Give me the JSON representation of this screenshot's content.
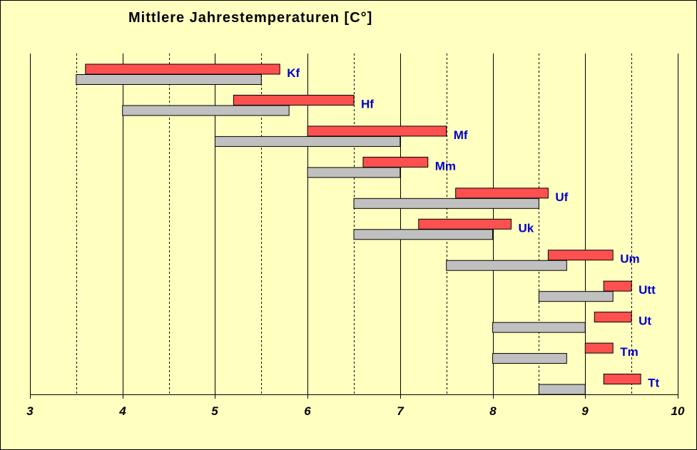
{
  "chart_data": {
    "type": "bar",
    "orientation": "horizontal-range",
    "title": "Mittlere  Jahrestemperaturen  [C°]",
    "xlabel": "",
    "ylabel": "",
    "xlim": [
      3,
      10
    ],
    "x_ticks": [
      3,
      4,
      5,
      6,
      7,
      8,
      9,
      10
    ],
    "grid": "vertical, solid at integers, dashed at halves",
    "legend": "none",
    "categories": [
      "Kf",
      "Hf",
      "Mf",
      "Mm",
      "Uf",
      "Uk",
      "Um",
      "Utt",
      "Ut",
      "Tm",
      "Tt"
    ],
    "series": [
      {
        "color": "#ff5050",
        "ranges": [
          [
            3.6,
            5.7
          ],
          [
            5.2,
            6.5
          ],
          [
            6.0,
            7.5
          ],
          [
            6.6,
            7.3
          ],
          [
            7.6,
            8.6
          ],
          [
            7.2,
            8.2
          ],
          [
            8.6,
            9.3
          ],
          [
            9.2,
            9.5
          ],
          [
            9.1,
            9.5
          ],
          [
            9.0,
            9.3
          ],
          [
            9.2,
            9.6
          ]
        ]
      },
      {
        "color": "#c0c0c0",
        "ranges": [
          [
            3.5,
            5.5
          ],
          [
            4.0,
            5.8
          ],
          [
            5.0,
            7.0
          ],
          [
            6.0,
            7.0
          ],
          [
            6.5,
            8.5
          ],
          [
            6.5,
            8.0
          ],
          [
            7.5,
            8.8
          ],
          [
            8.5,
            9.3
          ],
          [
            8.0,
            9.0
          ],
          [
            8.0,
            8.8
          ],
          [
            8.5,
            9.0
          ]
        ]
      }
    ],
    "colors": {
      "background": "#ffffc0",
      "label_color": "#0000cc",
      "axis": "#000000"
    }
  }
}
